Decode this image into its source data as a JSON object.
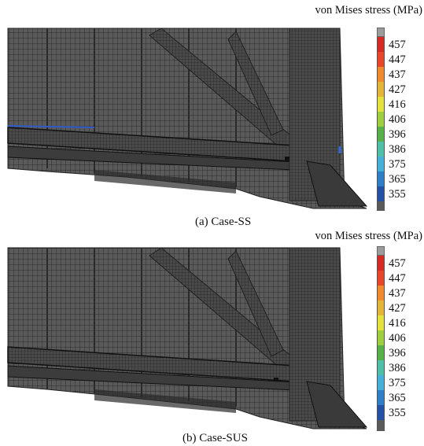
{
  "panels": [
    {
      "caption": "(a) Case-SS",
      "legend_title": "von Mises stress (MPa)",
      "legend_values": [
        "457",
        "447",
        "437",
        "427",
        "416",
        "406",
        "396",
        "386",
        "375",
        "365",
        "355"
      ],
      "legend_colors": [
        "#d62a24",
        "#e8452a",
        "#f08a2c",
        "#e3b53a",
        "#e4e23c",
        "#9fce3f",
        "#58b04a",
        "#4fbfa8",
        "#45b1d8",
        "#2f7fc8",
        "#2450a6"
      ]
    },
    {
      "caption": "(b) Case-SUS",
      "legend_title": "von Mises stress (MPa)",
      "legend_values": [
        "457",
        "447",
        "437",
        "427",
        "416",
        "406",
        "396",
        "386",
        "375",
        "365",
        "355"
      ],
      "legend_colors": [
        "#d62a24",
        "#e8452a",
        "#f08a2c",
        "#e3b53a",
        "#e4e23c",
        "#9fce3f",
        "#58b04a",
        "#4fbfa8",
        "#45b1d8",
        "#2f7fc8",
        "#2450a6"
      ]
    }
  ]
}
